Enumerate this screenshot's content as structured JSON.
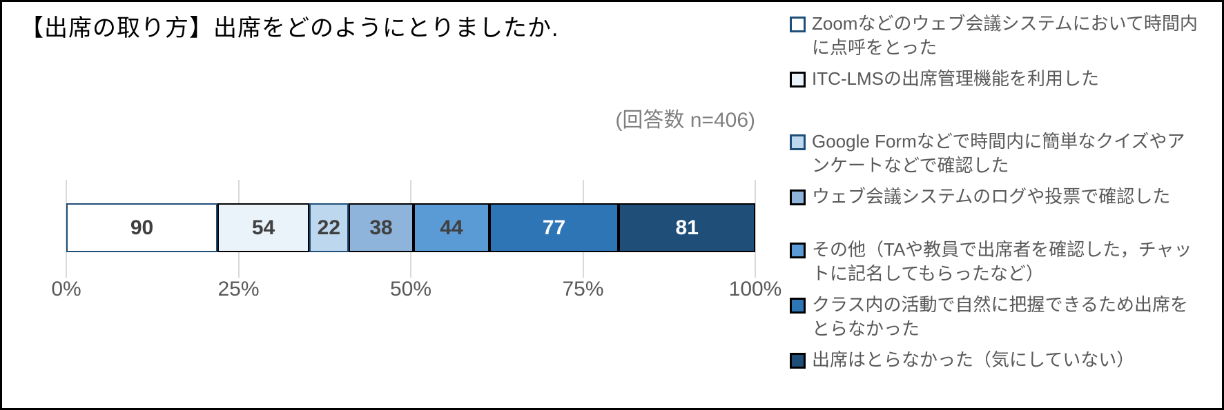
{
  "chart_data": {
    "type": "bar",
    "variant": "horizontal-stacked-100pct",
    "title": "【出席の取り方】出席をどのようにとりましたか.",
    "annotation": "(回答数 n=406)",
    "n_total": 406,
    "series": [
      {
        "label": "Zoomなどのウェブ会議システムにおいて時間内に点呼をとった",
        "value": 90,
        "fill": "#FFFFFF",
        "border": "#1F4E79",
        "text_color": "#404040"
      },
      {
        "label": "ITC-LMSの出席管理機能を利用した",
        "value": 54,
        "fill": "#EAF3FA",
        "border": "#000000",
        "text_color": "#404040"
      },
      {
        "label": "Google Formなどで時間内に簡単なクイズやアンケートなどで確認した",
        "value": 22,
        "fill": "#BDD7EE",
        "border": "#1F4E79",
        "text_color": "#404040"
      },
      {
        "label": "ウェブ会議システムのログや投票で確認した",
        "value": 38,
        "fill": "#8EB4DC",
        "border": "#000000",
        "text_color": "#404040"
      },
      {
        "label": "その他（TAや教員で出席者を確認した，チャットに記名してもらったなど）",
        "value": 44,
        "fill": "#5B9BD5",
        "border": "#000000",
        "text_color": "#404040"
      },
      {
        "label": "クラス内の活動で自然に把握できるため出席をとらなかった",
        "value": 77,
        "fill": "#2E75B6",
        "border": "#000000",
        "text_color": "#FFFFFF"
      },
      {
        "label": "出席はとらなかった（気にしていない）",
        "value": 81,
        "fill": "#1F4E79",
        "border": "#000000",
        "text_color": "#FFFFFF"
      }
    ],
    "x_ticks": [
      "0%",
      "25%",
      "50%",
      "75%",
      "100%"
    ],
    "xlim": [
      0,
      100
    ],
    "grid": true,
    "legend_position": "right"
  },
  "legend": {
    "items": [
      {
        "lines": [
          "Zoomなどのウェブ会議システムにおいて時間内",
          "に点呼をとった"
        ],
        "fill": "#FFFFFF",
        "border": "#1F4E79"
      },
      {
        "lines": [
          "ITC-LMSの出席管理機能を利用した"
        ],
        "fill": "#EAF3FA",
        "border": "#000000"
      },
      {
        "lines": [
          "Google Formなどで時間内に簡単なクイズやア",
          "ンケートなどで確認した"
        ],
        "fill": "#BDD7EE",
        "border": "#1F4E79"
      },
      {
        "lines": [
          "ウェブ会議システムのログや投票で確認した"
        ],
        "fill": "#8EB4DC",
        "border": "#000000"
      },
      {
        "lines": [
          "その他（TAや教員で出席者を確認した，チャッ",
          "トに記名してもらったなど）"
        ],
        "fill": "#5B9BD5",
        "border": "#000000"
      },
      {
        "lines": [
          "クラス内の活動で自然に把握できるため出席を",
          "とらなかった"
        ],
        "fill": "#2E75B6",
        "border": "#000000"
      },
      {
        "lines": [
          "出席はとらなかった（気にしていない）"
        ],
        "fill": "#1F4E79",
        "border": "#000000"
      }
    ]
  },
  "colors": {
    "gridline": "#D9D9D9",
    "axis_text": "#595959",
    "legend_text": "#595959",
    "annotation_text": "#7F7F7F",
    "frame": "#000000",
    "background": "#FFFFFF"
  }
}
